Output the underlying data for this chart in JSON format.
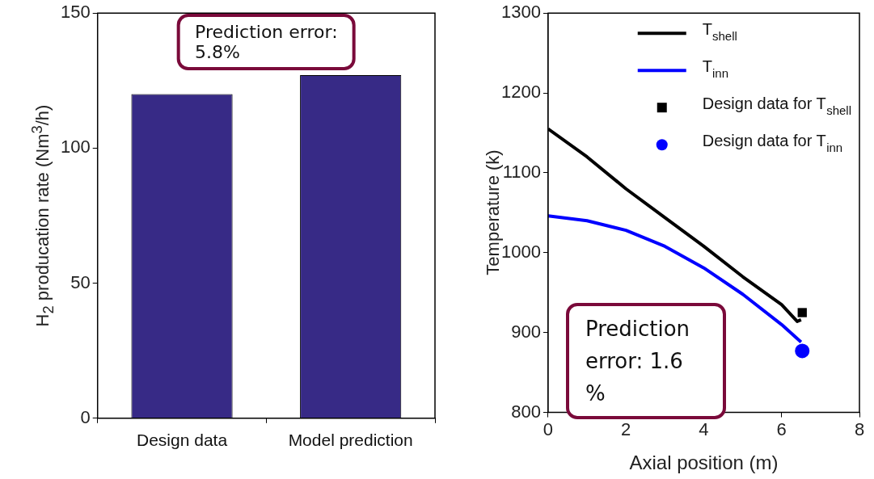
{
  "chart_data": [
    {
      "type": "bar",
      "ylabel": "H$_{2}$ producation rate (Nm$^{3}$/h)",
      "categories": [
        "Design data",
        "Model prediction"
      ],
      "values": [
        120,
        127
      ],
      "color": "#372a86",
      "ylim": [
        0,
        150
      ],
      "yticks": [
        0,
        50,
        100,
        150
      ],
      "grid": false,
      "legend": false,
      "annotations": [
        "Prediction error: 5.8%"
      ]
    },
    {
      "type": "line",
      "xlabel": "Axial position (m)",
      "ylabel": "Temperature (k)",
      "xlim": [
        0,
        8
      ],
      "xticks": [
        0,
        2,
        4,
        6,
        8
      ],
      "ylim": [
        800,
        1300
      ],
      "yticks": [
        800,
        900,
        1000,
        1100,
        1200,
        1300
      ],
      "grid": false,
      "legend": "top right",
      "annotations": [
        "Prediction error: 1.6 %"
      ],
      "series": [
        {
          "name": "T$_{shell}$",
          "type": "line",
          "marker": "none",
          "color": "#000000",
          "x": [
            0,
            1,
            2,
            3,
            4,
            5,
            6,
            6.4,
            6.5
          ],
          "values": [
            1155,
            1120,
            1080,
            1044,
            1008,
            970,
            935,
            914,
            916
          ]
        },
        {
          "name": "T$_{inn}$",
          "type": "line",
          "marker": "none",
          "color": "#0000ff",
          "x": [
            0,
            1,
            2,
            3,
            4,
            5,
            6,
            6.5
          ],
          "values": [
            1046,
            1040,
            1028,
            1008,
            981,
            948,
            910,
            888
          ]
        },
        {
          "name": "Design data for T$_{shell}$",
          "type": "scatter",
          "marker": "square",
          "color": "#000000",
          "x": [
            6.53
          ],
          "values": [
            925
          ]
        },
        {
          "name": "Design data for T$_{inn}$",
          "type": "scatter",
          "marker": "circle",
          "color": "#0000ff",
          "x": [
            6.53
          ],
          "values": [
            877
          ]
        }
      ]
    }
  ]
}
